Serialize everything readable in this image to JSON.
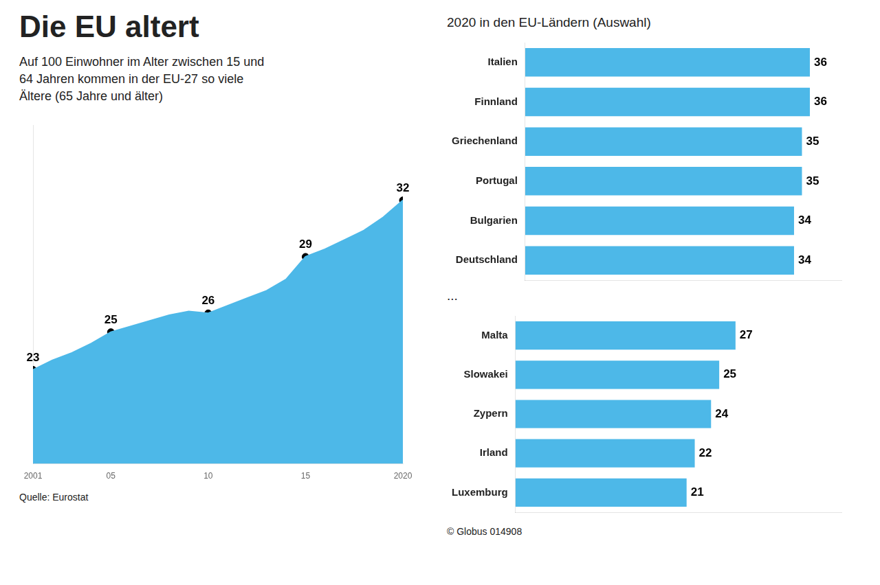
{
  "chart_data": [
    {
      "type": "line",
      "title": "Die EU altert",
      "subtitle": "Auf 100 Einwohner im Alter zwischen 15 und 64 Jahren kommen in der EU-27 so viele Ältere (65 Jahre und älter)",
      "annotations": [
        "Quelle: Eurostat"
      ],
      "x": [
        2001,
        2002,
        2003,
        2004,
        2005,
        2006,
        2007,
        2008,
        2009,
        2010,
        2011,
        2012,
        2013,
        2014,
        2015,
        2016,
        2017,
        2018,
        2019,
        2020
      ],
      "series": [
        {
          "type": "area",
          "color": "#4db8e8",
          "values": [
            23,
            23.5,
            23.9,
            24.4,
            25,
            25.3,
            25.6,
            25.9,
            26.1,
            26,
            26.4,
            26.8,
            27.2,
            27.8,
            29,
            29.4,
            29.9,
            30.4,
            31.1,
            32
          ]
        },
        {
          "type": "scatter",
          "color": "#000000",
          "data_labels": true,
          "x": [
            2001,
            2005,
            2010,
            2015,
            2020
          ],
          "values": [
            23,
            25,
            26,
            29,
            32
          ]
        }
      ],
      "xlim": [
        2001,
        2020
      ],
      "xticks": [
        2001,
        {
          "value": 2005,
          "label": "05"
        },
        {
          "value": 2010,
          "label": "10"
        },
        {
          "value": 2015,
          "label": "15"
        },
        2020
      ],
      "ylim": [
        18,
        36
      ],
      "tick_labels": "x",
      "grid": false
    },
    {
      "type": "bar",
      "orientation": "horizontal",
      "title": "2020 in den EU-Ländern (Auswahl)",
      "categories": [
        "Italien",
        "Finnland",
        "Griechenland",
        "Portugal",
        "Bulgarien",
        "Deutschland"
      ],
      "values": [
        36,
        36,
        35,
        35,
        34,
        34
      ],
      "color": "#4db8e8",
      "data_labels": true,
      "xlim": [
        0,
        40
      ],
      "xticks": [
        0,
        10,
        20,
        30,
        40
      ],
      "tick_labels": "y",
      "grid": false
    },
    {
      "type": "bar",
      "orientation": "horizontal",
      "title": "...",
      "categories": [
        "Malta",
        "Slowakei",
        "Zypern",
        "Irland",
        "Luxemburg"
      ],
      "values": [
        27,
        25,
        24,
        22,
        21
      ],
      "color": "#4db8e8",
      "data_labels": true,
      "xlim": [
        0,
        40
      ],
      "xticks": [
        0,
        10,
        20,
        30,
        40
      ],
      "tick_labels": "y",
      "grid": false,
      "annotations": [
        "© Globus",
        "014908"
      ]
    }
  ]
}
